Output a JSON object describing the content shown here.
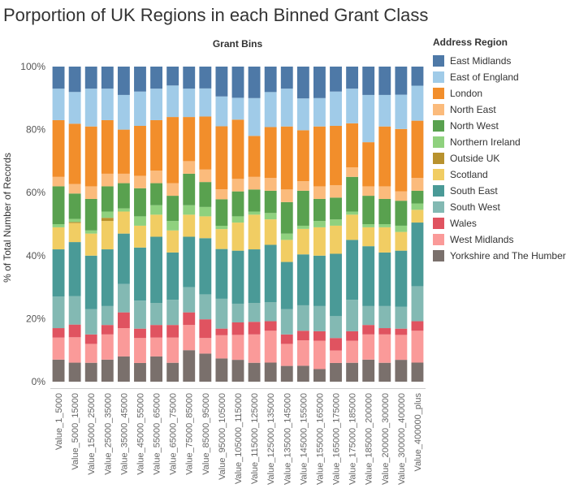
{
  "chart_data": {
    "type": "bar",
    "stacked": true,
    "title": "Porportion of UK Regions in each Binned Grant Class",
    "column_header": "Grant Bins",
    "ylabel": "% of Total Number of Records",
    "ylim": [
      0,
      100
    ],
    "yticks": [
      "0%",
      "20%",
      "40%",
      "60%",
      "80%",
      "100%"
    ],
    "grid": false,
    "legend_title": "Address Region",
    "legend_position": "right",
    "categories": [
      "Value_1_5000",
      "Value_5000_15000",
      "Value_15000_25000",
      "Value_25000_35000",
      "Value_35000_45000",
      "Value_45000_55000",
      "Value_55000_65000",
      "Value_65000_75000",
      "Value_75000_85000",
      "Value_85000_95000",
      "Value_95000_105000",
      "Value_105000_115000",
      "Value_115000_125000",
      "Value_125000_135000",
      "Value_135000_145000",
      "Value_145000_155000",
      "Value_155000_165000",
      "Value_165000_175000",
      "Value_175000_185000",
      "Value_185000_200000",
      "Value_200000_300000",
      "Value_300000_400000",
      "Value_400000_plus"
    ],
    "series": [
      {
        "name": "Yorkshire and The Humber",
        "color": "#7a706c",
        "values": [
          7,
          6,
          6,
          7,
          8,
          6,
          8,
          6,
          10,
          9,
          7,
          7,
          6,
          6,
          5,
          5,
          4,
          6,
          6,
          7,
          6,
          7,
          6
        ]
      },
      {
        "name": "West Midlands",
        "color": "#fa9a99",
        "values": [
          7,
          8,
          6,
          8,
          9,
          8,
          6,
          8,
          8,
          5,
          7,
          8,
          9,
          10,
          7,
          8,
          9,
          4,
          7,
          8,
          9,
          8,
          10
        ]
      },
      {
        "name": "Wales",
        "color": "#e05360",
        "values": [
          3,
          4,
          3,
          3,
          5,
          3,
          4,
          4,
          4,
          6,
          2,
          4,
          4,
          3,
          3,
          3,
          3,
          4,
          3,
          3,
          2,
          2,
          3
        ]
      },
      {
        "name": "South West",
        "color": "#83b9b3",
        "values": [
          10,
          9,
          8,
          6,
          9,
          9,
          7,
          8,
          8,
          8,
          9,
          6,
          6,
          6,
          8,
          8,
          8,
          7,
          10,
          6,
          7,
          7,
          11
        ]
      },
      {
        "name": "South East",
        "color": "#4a9a97",
        "values": [
          15,
          17,
          17,
          18,
          16,
          17,
          21,
          15,
          16,
          18,
          15,
          17,
          17,
          18,
          15,
          16,
          16,
          20,
          19,
          19,
          17,
          18,
          20
        ]
      },
      {
        "name": "Scotland",
        "color": "#f1cd63",
        "values": [
          7,
          6,
          7,
          9,
          7,
          7,
          7,
          7,
          7,
          7,
          6,
          9,
          11,
          8,
          7,
          8,
          9,
          9,
          8,
          6,
          8,
          6,
          4
        ]
      },
      {
        "name": "Outside UK",
        "color": "#b8922e",
        "values": [
          0,
          0.3,
          0,
          1,
          0,
          0,
          0,
          0,
          0,
          0,
          0,
          0,
          0,
          0,
          0,
          0,
          0,
          0,
          0,
          0,
          0,
          0,
          0
        ]
      },
      {
        "name": "Northern Ireland",
        "color": "#8fd17e",
        "values": [
          1,
          1,
          1,
          2,
          1,
          3,
          3,
          3,
          3,
          3,
          1,
          2,
          1,
          2,
          2,
          1,
          2,
          2,
          1,
          1,
          1,
          2,
          2
        ]
      },
      {
        "name": "North West",
        "color": "#59a14f",
        "values": [
          12,
          8,
          10,
          8,
          8,
          9,
          7,
          8,
          10,
          8,
          8,
          8,
          7,
          7,
          10,
          11,
          7,
          7,
          11,
          9,
          8,
          8,
          4
        ]
      },
      {
        "name": "North East",
        "color": "#fbbb7c",
        "values": [
          3,
          3,
          4,
          4,
          3,
          4,
          4,
          4,
          4,
          4,
          3,
          4,
          4,
          4,
          4,
          3,
          4,
          4,
          3,
          3,
          4,
          3,
          4
        ]
      },
      {
        "name": "London",
        "color": "#f28e2b",
        "values": [
          18,
          19,
          19,
          17,
          14,
          16,
          16,
          21,
          14,
          17,
          19,
          19,
          13,
          16,
          20,
          16,
          19,
          19,
          14,
          14,
          19,
          20,
          18
        ]
      },
      {
        "name": "East of England",
        "color": "#a0cbe8",
        "values": [
          10,
          10,
          12,
          10,
          11,
          11,
          10,
          10,
          9,
          9,
          9,
          7,
          12,
          11,
          12,
          10,
          9,
          11,
          11,
          15,
          10,
          11,
          11
        ]
      },
      {
        "name": "East Midlands",
        "color": "#4e79a7",
        "values": [
          7,
          8,
          7,
          7,
          9,
          8,
          7,
          6,
          7,
          7,
          9,
          10,
          10,
          8,
          7,
          10,
          10,
          8,
          7,
          9,
          9,
          9,
          6
        ]
      }
    ]
  }
}
